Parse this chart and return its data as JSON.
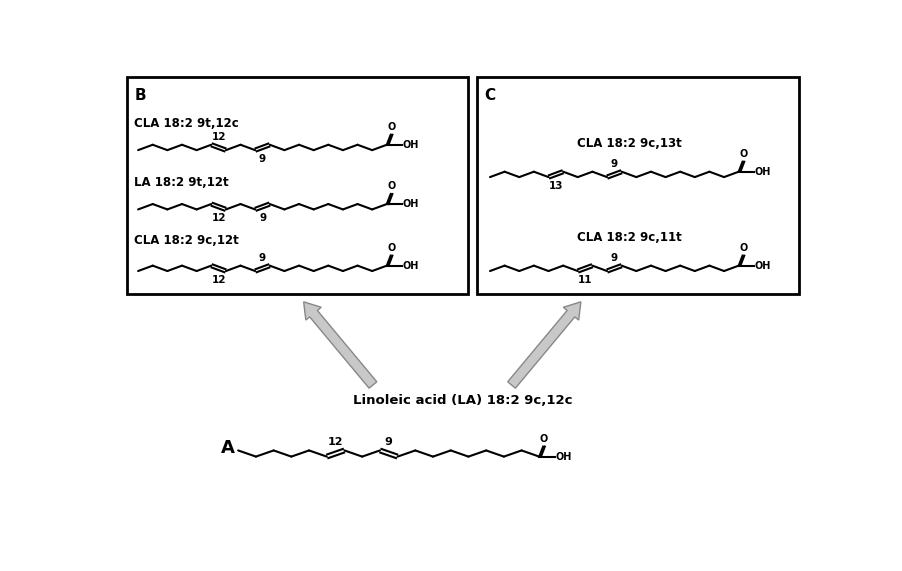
{
  "title_A": "A",
  "title_B": "B",
  "title_C": "C",
  "label_top": "Linoleic acid (LA) 18:2 9c,12c",
  "label_B1": "CLA 18:2 9c,12t",
  "label_B2": "LA 18:2 9t,12t",
  "label_B3": "CLA 18:2 9t,12c",
  "label_C1": "CLA 18:2 9c,11t",
  "label_C2": "CLA 18:2 9c,13t",
  "bg_color": "#ffffff",
  "line_color": "#000000",
  "arrow_color": "#c0c0c0",
  "arrow_edge_color": "#909090"
}
